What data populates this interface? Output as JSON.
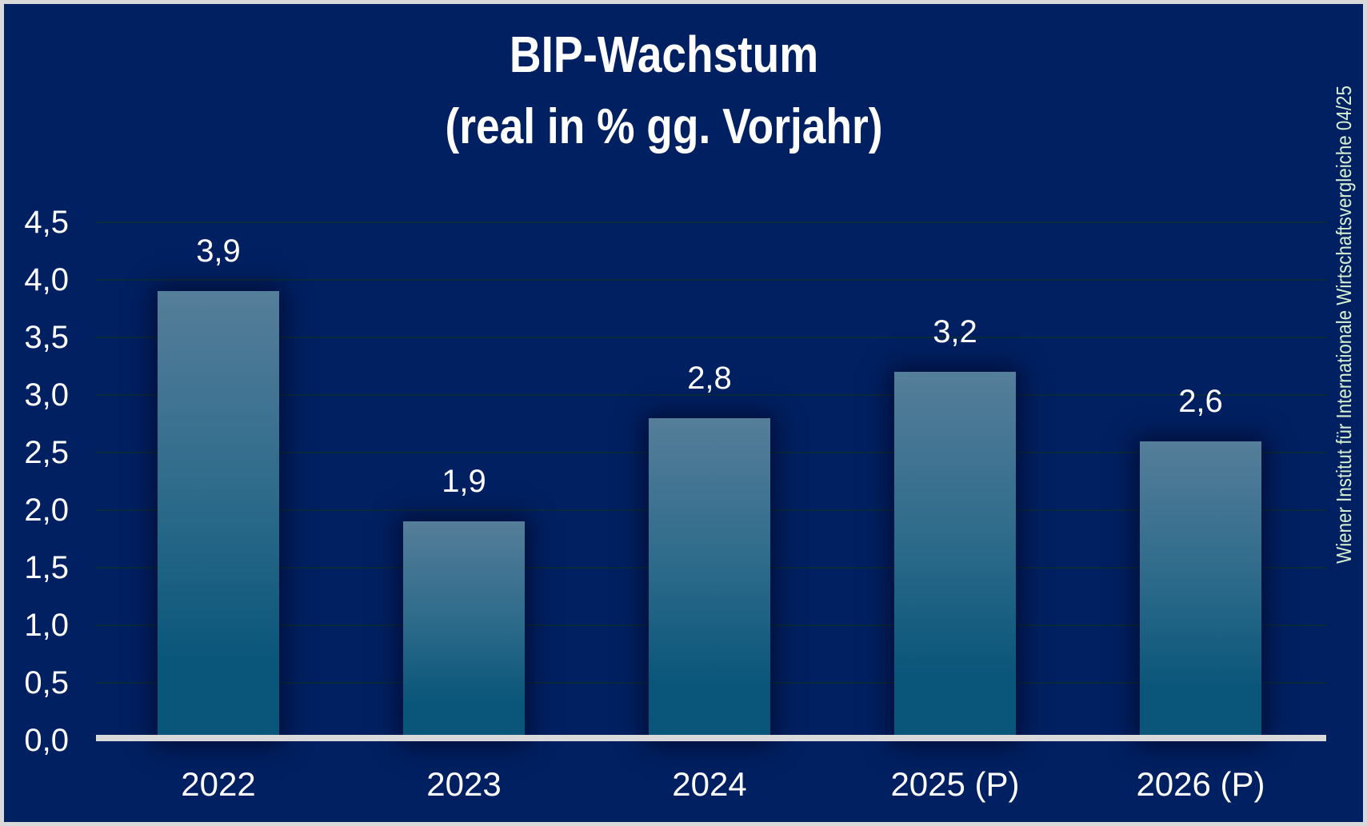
{
  "chart_data": {
    "type": "bar",
    "title": "BIP-Wachstum",
    "subtitle": "(real in % gg. Vorjahr)",
    "categories": [
      "2022",
      "2023",
      "2024",
      "2025 (P)",
      "2026 (P)"
    ],
    "values": [
      3.9,
      1.9,
      2.8,
      3.2,
      2.6
    ],
    "value_labels": [
      "3,9",
      "1,9",
      "2,8",
      "3,2",
      "2,6"
    ],
    "y_ticks": [
      "0,0",
      "0,5",
      "1,0",
      "1,5",
      "2,0",
      "2,5",
      "3,0",
      "3,5",
      "4,0",
      "4,5"
    ],
    "y_tick_values": [
      0,
      0.5,
      1.0,
      1.5,
      2.0,
      2.5,
      3.0,
      3.5,
      4.0,
      4.5
    ],
    "ylim": [
      0,
      4.5
    ],
    "grid": true,
    "legend": false,
    "source_note": "Wiener Institut für Internationale Wirtschaftsvergleiche 04/25",
    "colors": {
      "background": "#012061",
      "frame_border": "#d9d9d9",
      "bar_gradient_top": "#557e9a",
      "bar_gradient_mid": "#2e6b8b",
      "bar_gradient_bottom": "#0a567a",
      "gridline": "#0c2a3e",
      "axis_line": "#d9d9d9",
      "text": "#ffffff",
      "source_text": "#d6f1d2"
    }
  }
}
